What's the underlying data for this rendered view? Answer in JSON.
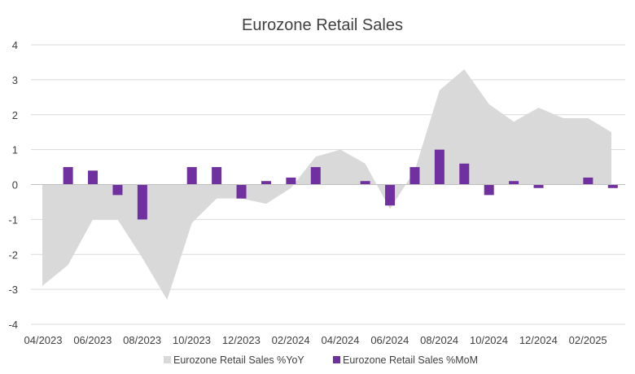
{
  "chart_data": {
    "type": "bar",
    "title": "Eurozone Retail Sales",
    "xlabel": "",
    "ylabel": "",
    "ylim": [
      -4,
      4
    ],
    "yticks": [
      "4",
      "3",
      "2",
      "1",
      "0",
      "-1",
      "-2",
      "-3",
      "-4"
    ],
    "grid": true,
    "legend_position": "bottom",
    "categories": [
      "04/2023",
      "05/2023",
      "06/2023",
      "07/2023",
      "08/2023",
      "09/2023",
      "10/2023",
      "11/2023",
      "12/2023",
      "01/2024",
      "02/2024",
      "03/2024",
      "04/2024",
      "05/2024",
      "06/2024",
      "07/2024",
      "08/2024",
      "09/2024",
      "10/2024",
      "11/2024",
      "12/2024",
      "01/2025",
      "02/2025",
      "03/2025"
    ],
    "xtick_labels": [
      "04/2023",
      "06/2023",
      "08/2023",
      "10/2023",
      "12/2023",
      "02/2024",
      "04/2024",
      "06/2024",
      "08/2024",
      "10/2024",
      "12/2024",
      "02/2025"
    ],
    "series": [
      {
        "name": "Eurozone Retail Sales %YoY",
        "type": "area",
        "color": "#d9d9d9",
        "values": [
          -2.9,
          -2.3,
          -1.0,
          -1.0,
          -2.1,
          -3.3,
          -1.1,
          -0.4,
          -0.4,
          -0.55,
          -0.1,
          0.8,
          1.0,
          0.6,
          -0.7,
          0.4,
          2.7,
          3.3,
          2.3,
          1.8,
          2.2,
          1.9,
          1.9,
          1.5
        ]
      },
      {
        "name": "Eurozone Retail Sales %MoM",
        "type": "bar",
        "color": "#7030a0",
        "values": [
          0,
          0.5,
          0.4,
          -0.3,
          -1.0,
          0,
          0.5,
          0.5,
          -0.4,
          0.1,
          0.2,
          0.5,
          0,
          0.1,
          -0.6,
          0.5,
          1.0,
          0.6,
          -0.3,
          0.1,
          -0.1,
          0,
          0.2,
          -0.1
        ]
      }
    ]
  }
}
